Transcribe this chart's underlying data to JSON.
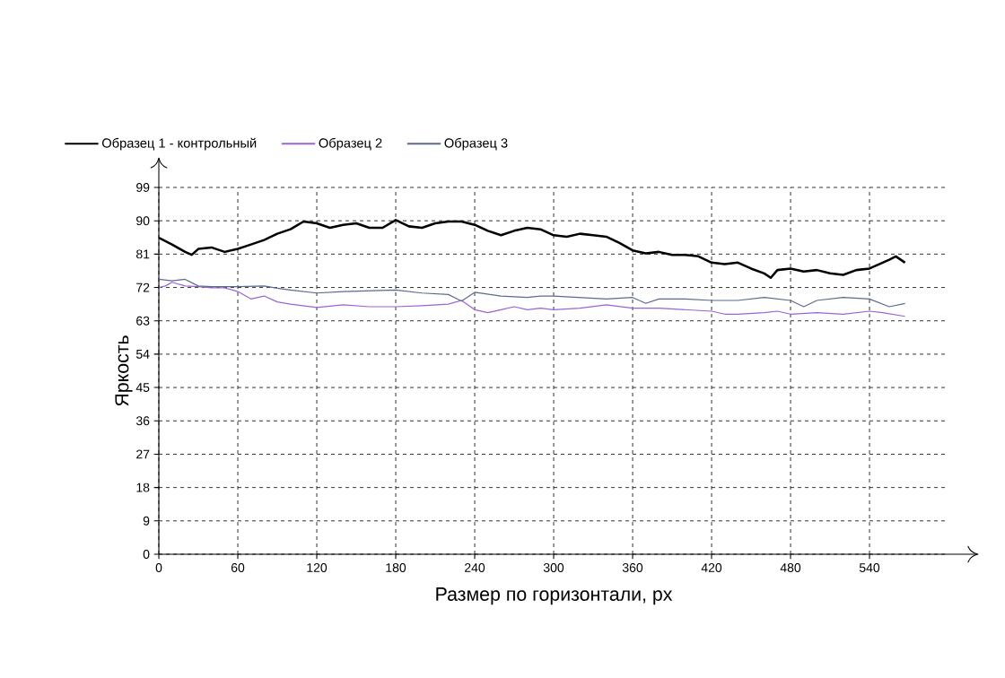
{
  "chart_data": {
    "type": "line",
    "xlabel": "Размер по горизонтали, px",
    "ylabel": "Яркость",
    "xlim": [
      0,
      600
    ],
    "ylim": [
      0,
      99
    ],
    "xticks": [
      0,
      60,
      120,
      180,
      240,
      300,
      360,
      420,
      480,
      540
    ],
    "yticks": [
      0,
      9,
      18,
      27,
      36,
      45,
      54,
      63,
      72,
      81,
      90,
      99
    ],
    "grid": true,
    "legend": "top left",
    "marker": "none",
    "line_style": "solid",
    "series": [
      {
        "name": "Образец 1 - контрольный",
        "color": "#000000",
        "x": [
          0,
          10,
          20,
          25,
          30,
          40,
          50,
          60,
          70,
          80,
          90,
          100,
          110,
          120,
          130,
          140,
          150,
          160,
          170,
          180,
          190,
          200,
          210,
          220,
          230,
          240,
          250,
          260,
          270,
          280,
          290,
          300,
          310,
          320,
          330,
          340,
          350,
          360,
          370,
          380,
          390,
          400,
          410,
          420,
          430,
          440,
          450,
          460,
          465,
          470,
          480,
          490,
          500,
          510,
          520,
          530,
          540,
          550,
          555,
          560,
          567
        ],
        "values": [
          85.4,
          83.6,
          81.6,
          80.8,
          82.4,
          82.8,
          81.6,
          82.4,
          83.6,
          84.8,
          86.5,
          87.7,
          89.8,
          89.3,
          88.1,
          88.9,
          89.3,
          88.1,
          88.1,
          90.2,
          88.5,
          88.1,
          89.3,
          89.8,
          89.8,
          88.9,
          87.3,
          86.1,
          87.3,
          88.1,
          87.7,
          86.1,
          85.7,
          86.5,
          86.1,
          85.7,
          84.0,
          82.0,
          81.2,
          81.6,
          80.8,
          80.8,
          80.4,
          78.7,
          78.3,
          78.7,
          77.1,
          75.8,
          74.6,
          76.7,
          77.1,
          76.3,
          76.7,
          75.8,
          75.4,
          76.7,
          77.1,
          78.7,
          79.5,
          80.4,
          78.7
        ]
      },
      {
        "name": "Образец 2",
        "color": "#9b64d6",
        "x": [
          0,
          5,
          10,
          20,
          30,
          40,
          50,
          60,
          70,
          80,
          90,
          100,
          120,
          140,
          160,
          180,
          200,
          220,
          230,
          240,
          250,
          260,
          270,
          280,
          290,
          300,
          320,
          340,
          360,
          380,
          400,
          420,
          430,
          440,
          460,
          470,
          480,
          500,
          520,
          540,
          550,
          567
        ],
        "values": [
          72.0,
          72.4,
          73.4,
          72.4,
          72.2,
          71.9,
          71.9,
          70.9,
          68.9,
          69.7,
          68.1,
          67.5,
          66.6,
          67.3,
          66.8,
          66.8,
          67.1,
          67.5,
          68.5,
          66.0,
          65.2,
          66.0,
          66.8,
          66.0,
          66.4,
          66.0,
          66.4,
          67.3,
          66.4,
          66.4,
          66.0,
          65.6,
          64.8,
          64.8,
          65.2,
          65.6,
          64.8,
          65.2,
          64.8,
          65.6,
          65.2,
          64.2
        ]
      },
      {
        "name": "Образец 3",
        "color": "#5c6a8e",
        "x": [
          0,
          10,
          20,
          30,
          40,
          60,
          80,
          90,
          100,
          120,
          140,
          160,
          180,
          200,
          220,
          230,
          240,
          260,
          280,
          290,
          300,
          320,
          340,
          360,
          370,
          380,
          400,
          420,
          440,
          460,
          480,
          490,
          500,
          520,
          540,
          555,
          567
        ],
        "values": [
          74.2,
          73.8,
          74.2,
          72.4,
          72.2,
          72.2,
          72.4,
          71.8,
          71.3,
          70.5,
          70.9,
          71.1,
          71.3,
          70.5,
          70.1,
          68.3,
          70.7,
          69.7,
          69.3,
          69.7,
          69.7,
          69.3,
          68.9,
          69.3,
          67.7,
          68.9,
          68.9,
          68.5,
          68.5,
          69.3,
          68.5,
          66.8,
          68.5,
          69.3,
          68.9,
          66.8,
          67.7
        ]
      }
    ]
  }
}
